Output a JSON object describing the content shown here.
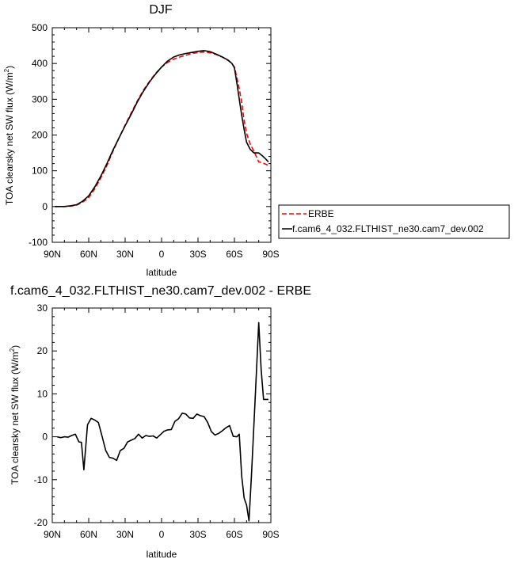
{
  "chart_data": [
    {
      "type": "line",
      "title": "DJF",
      "xlabel": "latitude",
      "ylabel": "TOA clearsky net SW flux (W/m",
      "ylabel_superscript": "2",
      "ylabel_close": ")",
      "xlim": [
        -90,
        90
      ],
      "ylim": [
        -100,
        500
      ],
      "x_ticks": [
        -90,
        -60,
        -30,
        0,
        30,
        60,
        90
      ],
      "x_tick_labels": [
        "90N",
        "60N",
        "30N",
        "0",
        "30S",
        "60S",
        "90S"
      ],
      "y_ticks": [
        -100,
        0,
        100,
        200,
        300,
        400,
        500
      ],
      "y_tick_labels": [
        "-100",
        "0",
        "100",
        "200",
        "300",
        "400",
        "500"
      ],
      "grid": false,
      "legend_position": "right, outside plot",
      "series": [
        {
          "name": "ERBE",
          "color": "#ff0000",
          "dash": "dashed",
          "x": [
            -88,
            -80,
            -75,
            -70,
            -65,
            -60,
            -55,
            -50,
            -45,
            -40,
            -35,
            -30,
            -25,
            -20,
            -15,
            -10,
            -5,
            0,
            5,
            10,
            15,
            20,
            25,
            30,
            35,
            40,
            45,
            50,
            55,
            58,
            60,
            62,
            64,
            66,
            68,
            70,
            73,
            76,
            78,
            80,
            83,
            86,
            88
          ],
          "y": [
            0,
            0,
            1,
            4,
            12,
            25,
            50,
            80,
            115,
            155,
            192,
            228,
            262,
            295,
            325,
            350,
            372,
            390,
            403,
            412,
            418,
            423,
            428,
            431,
            432,
            430,
            425,
            418,
            408,
            400,
            390,
            360,
            330,
            290,
            240,
            205,
            175,
            155,
            140,
            125,
            122,
            118,
            115
          ]
        },
        {
          "name": "f.cam6_4_032.FLTHIST_ne30.cam7_dev.002",
          "color": "#000000",
          "dash": "solid",
          "x": [
            -88,
            -80,
            -75,
            -70,
            -65,
            -60,
            -55,
            -50,
            -45,
            -40,
            -35,
            -30,
            -25,
            -20,
            -15,
            -10,
            -5,
            0,
            5,
            10,
            15,
            20,
            25,
            30,
            35,
            40,
            45,
            50,
            55,
            58,
            60,
            62,
            64,
            66,
            68,
            70,
            73,
            76,
            78,
            80,
            83,
            86,
            88
          ],
          "y": [
            0,
            0,
            2,
            5,
            15,
            30,
            55,
            85,
            120,
            158,
            192,
            226,
            258,
            292,
            322,
            348,
            370,
            390,
            407,
            418,
            424,
            428,
            431,
            434,
            436,
            433,
            426,
            418,
            409,
            400,
            388,
            345,
            300,
            255,
            215,
            180,
            160,
            150,
            150,
            150,
            142,
            132,
            125
          ]
        }
      ]
    },
    {
      "type": "line",
      "title": "f.cam6_4_032.FLTHIST_ne30.cam7_dev.002 - ERBE",
      "xlabel": "latitude",
      "ylabel": "TOA clearsky net SW flux (W/m",
      "ylabel_superscript": "2",
      "ylabel_close": ")",
      "xlim": [
        -90,
        90
      ],
      "ylim": [
        -20,
        30
      ],
      "x_ticks": [
        -90,
        -60,
        -30,
        0,
        30,
        60,
        90
      ],
      "x_tick_labels": [
        "90N",
        "60N",
        "30N",
        "0",
        "30S",
        "60S",
        "90S"
      ],
      "y_ticks": [
        -20,
        -10,
        0,
        10,
        20,
        30
      ],
      "y_tick_labels": [
        "-20",
        "-10",
        "0",
        "10",
        "20",
        "30"
      ],
      "grid": false,
      "series": [
        {
          "color": "#000000",
          "x": [
            -86,
            -83,
            -80,
            -77,
            -74,
            -71,
            -68,
            -66,
            -64,
            -61,
            -58,
            -55,
            -52,
            -49,
            -46,
            -43,
            -40,
            -37,
            -34,
            -31,
            -28,
            -25,
            -22,
            -19,
            -16,
            -13,
            -10,
            -7,
            -4,
            -1,
            2,
            5,
            8,
            11,
            14,
            17,
            20,
            23,
            26,
            29,
            32,
            35,
            38,
            41,
            44,
            47,
            50,
            53,
            56,
            59,
            62,
            64,
            66,
            68,
            70,
            72,
            74,
            76,
            78,
            80,
            82,
            84,
            86,
            88
          ],
          "y": [
            0,
            -0.2,
            0,
            -0.1,
            0.3,
            0.6,
            -1.2,
            -1.3,
            -7.7,
            2.8,
            4.3,
            3.9,
            3.3,
            0.1,
            -3.2,
            -4.8,
            -5.0,
            -5.5,
            -3.2,
            -2.7,
            -1.2,
            -0.8,
            -0.4,
            0.6,
            -0.3,
            0.3,
            0.1,
            0.2,
            -0.3,
            0.5,
            1.3,
            1.6,
            1.7,
            3.6,
            4.2,
            5.5,
            5.3,
            4.4,
            4.3,
            5.3,
            4.9,
            4.7,
            3.3,
            1.2,
            0.4,
            0.8,
            1.4,
            2.1,
            2.6,
            0.1,
            0,
            0.6,
            -9.2,
            -14.3,
            -15.9,
            -19.6,
            -9.0,
            2.4,
            14.4,
            26.6,
            15.8,
            8.7,
            8.7,
            8.7
          ]
        }
      ]
    }
  ]
}
